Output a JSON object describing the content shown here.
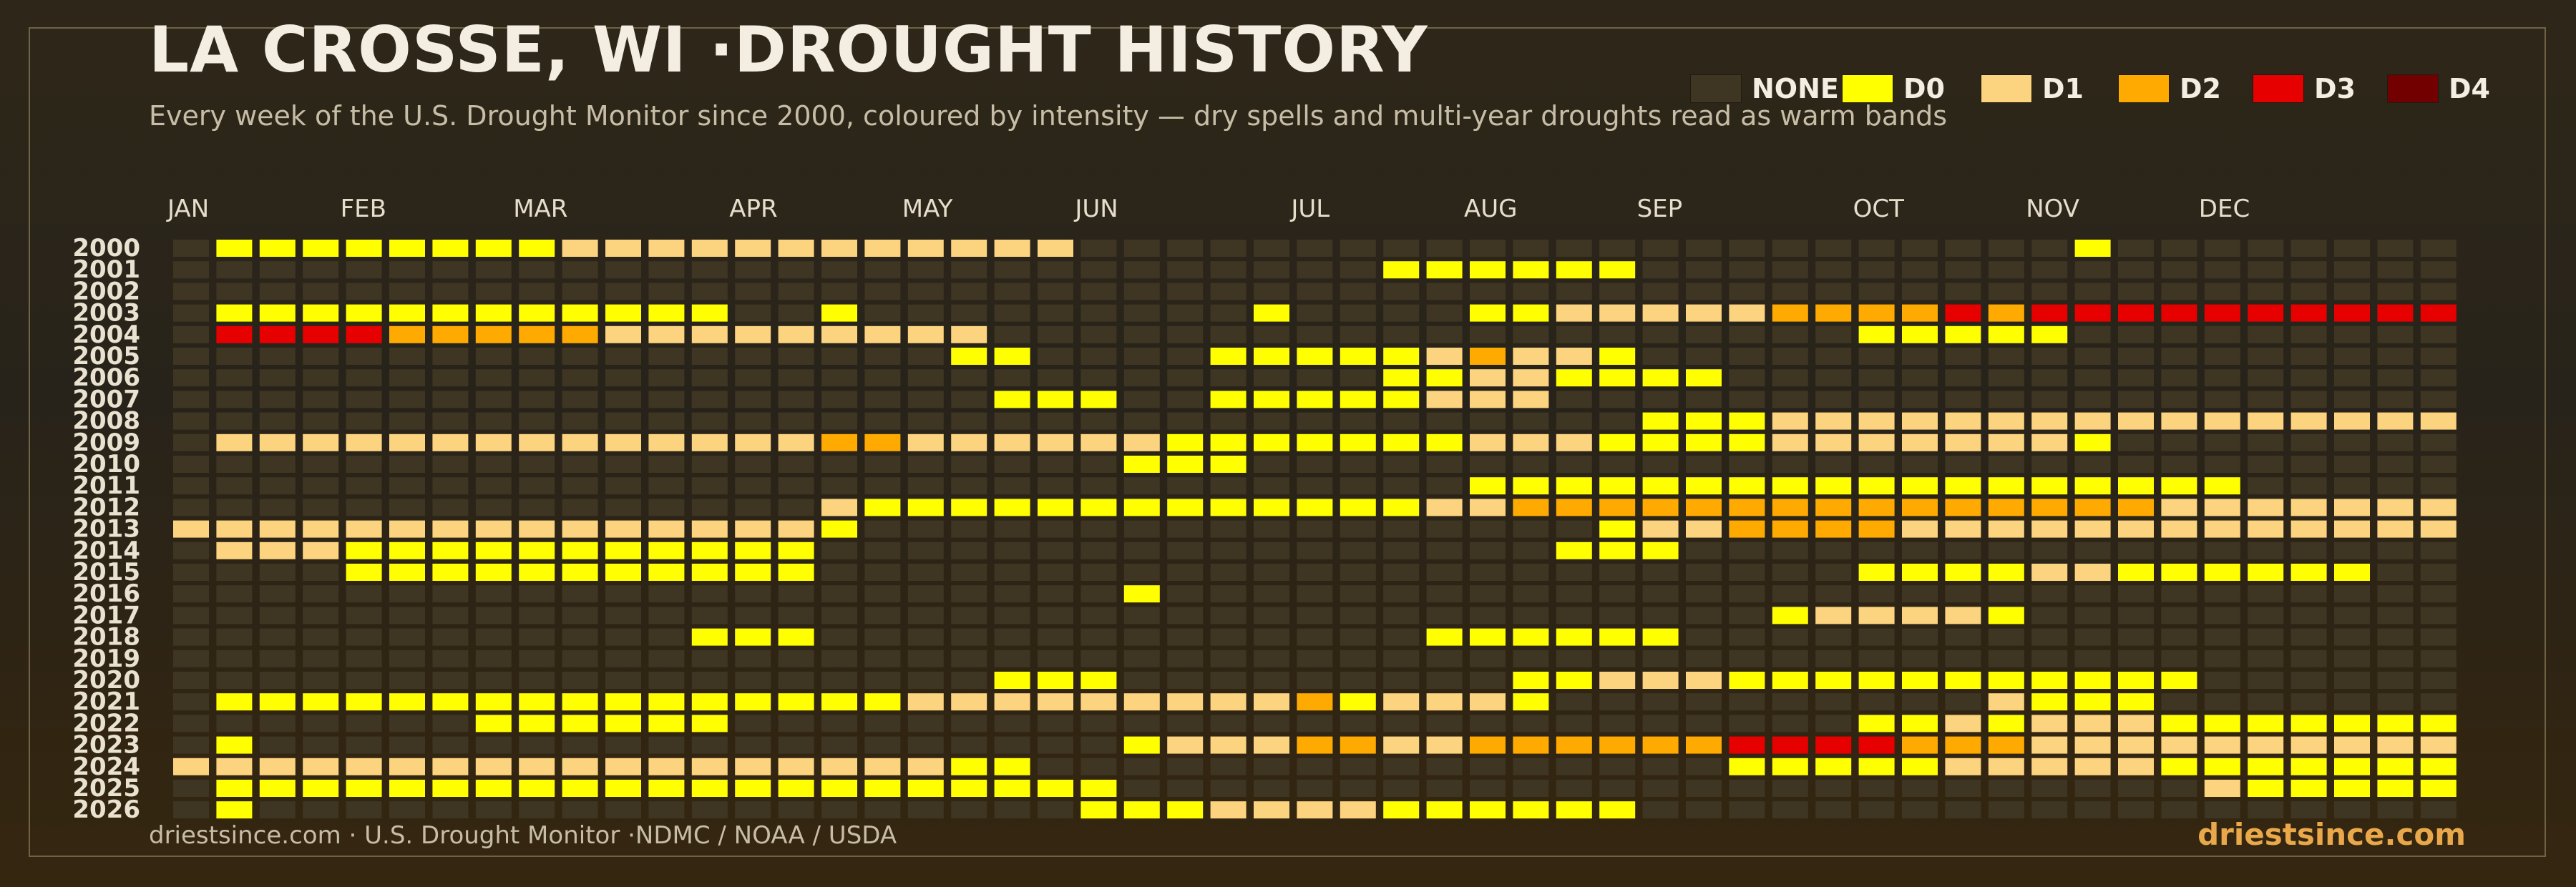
{
  "title": "LA CROSSE, WI ·DROUGHT HISTORY",
  "subtitle": "Every week of the U.S. Drought Monitor since 2000, coloured by intensity — dry spells and multi-year droughts read as warm bands",
  "legend": [
    {
      "key": "none",
      "label": "NONE",
      "color": "#3e3522"
    },
    {
      "key": "d0",
      "label": "D0",
      "color": "#ffff00"
    },
    {
      "key": "d1",
      "label": "D1",
      "color": "#fcd37f"
    },
    {
      "key": "d2",
      "label": "D2",
      "color": "#ffaa00"
    },
    {
      "key": "d3",
      "label": "D3",
      "color": "#e60000"
    },
    {
      "key": "d4",
      "label": "D4",
      "color": "#730000"
    }
  ],
  "footer": {
    "left": "driestsince.com  · U.S. Drought Monitor ·NDMC / NOAA / USDA",
    "right": "driestsince.com"
  },
  "chart_data": {
    "type": "heatmap",
    "title": "LA CROSSE, WI ·DROUGHT HISTORY",
    "subtitle": "Every week of the U.S. Drought Monitor since 2000, coloured by intensity — dry spells and multi-year droughts read as warm bands",
    "x_label": "",
    "y_label": "",
    "columns": 53,
    "month_labels": [
      {
        "label": "JAN",
        "week": 0
      },
      {
        "label": "FEB",
        "week": 4
      },
      {
        "label": "MAR",
        "week": 8
      },
      {
        "label": "APR",
        "week": 13
      },
      {
        "label": "MAY",
        "week": 17
      },
      {
        "label": "JUN",
        "week": 21
      },
      {
        "label": "JUL",
        "week": 26
      },
      {
        "label": "AUG",
        "week": 30
      },
      {
        "label": "SEP",
        "week": 34
      },
      {
        "label": "OCT",
        "week": 39
      },
      {
        "label": "NOV",
        "week": 43
      },
      {
        "label": "DEC",
        "week": 47
      }
    ],
    "levels": [
      "none",
      "D0",
      "D1",
      "D2",
      "D3",
      "D4"
    ],
    "rows": [
      {
        "year": "2000",
        "runs": [
          [
            1,
            8,
            1
          ],
          [
            9,
            20,
            2
          ],
          [
            44,
            44,
            1
          ]
        ]
      },
      {
        "year": "2001",
        "runs": [
          [
            28,
            33,
            1
          ]
        ]
      },
      {
        "year": "2002",
        "runs": []
      },
      {
        "year": "2003",
        "runs": [
          [
            1,
            12,
            1
          ],
          [
            15,
            15,
            1
          ],
          [
            25,
            25,
            1
          ],
          [
            30,
            31,
            1
          ],
          [
            32,
            36,
            2
          ],
          [
            37,
            40,
            3
          ],
          [
            41,
            41,
            4
          ],
          [
            42,
            42,
            3
          ],
          [
            43,
            52,
            4
          ]
        ]
      },
      {
        "year": "2004",
        "runs": [
          [
            1,
            4,
            4
          ],
          [
            5,
            9,
            3
          ],
          [
            10,
            18,
            2
          ],
          [
            39,
            43,
            1
          ]
        ]
      },
      {
        "year": "2005",
        "runs": [
          [
            18,
            19,
            1
          ],
          [
            24,
            28,
            1
          ],
          [
            29,
            29,
            2
          ],
          [
            30,
            30,
            3
          ],
          [
            31,
            32,
            2
          ],
          [
            33,
            33,
            1
          ]
        ]
      },
      {
        "year": "2006",
        "runs": [
          [
            28,
            29,
            1
          ],
          [
            30,
            31,
            2
          ],
          [
            32,
            35,
            1
          ]
        ]
      },
      {
        "year": "2007",
        "runs": [
          [
            19,
            21,
            1
          ],
          [
            24,
            28,
            1
          ],
          [
            29,
            31,
            2
          ]
        ]
      },
      {
        "year": "2008",
        "runs": [
          [
            34,
            36,
            1
          ],
          [
            37,
            52,
            2
          ]
        ]
      },
      {
        "year": "2009",
        "runs": [
          [
            1,
            14,
            2
          ],
          [
            15,
            16,
            3
          ],
          [
            17,
            22,
            2
          ],
          [
            23,
            29,
            1
          ],
          [
            30,
            32,
            2
          ],
          [
            33,
            36,
            1
          ],
          [
            37,
            43,
            2
          ],
          [
            44,
            44,
            1
          ]
        ]
      },
      {
        "year": "2010",
        "runs": [
          [
            22,
            24,
            1
          ]
        ]
      },
      {
        "year": "2011",
        "runs": [
          [
            30,
            47,
            1
          ]
        ]
      },
      {
        "year": "2012",
        "runs": [
          [
            15,
            15,
            2
          ],
          [
            16,
            28,
            1
          ],
          [
            29,
            30,
            2
          ],
          [
            31,
            45,
            3
          ],
          [
            46,
            52,
            2
          ]
        ]
      },
      {
        "year": "2013",
        "runs": [
          [
            0,
            14,
            2
          ],
          [
            15,
            15,
            1
          ],
          [
            33,
            33,
            1
          ],
          [
            34,
            35,
            2
          ],
          [
            36,
            39,
            3
          ],
          [
            40,
            52,
            2
          ]
        ]
      },
      {
        "year": "2014",
        "runs": [
          [
            1,
            3,
            2
          ],
          [
            4,
            14,
            1
          ],
          [
            32,
            34,
            1
          ]
        ]
      },
      {
        "year": "2015",
        "runs": [
          [
            4,
            14,
            1
          ],
          [
            39,
            42,
            1
          ],
          [
            43,
            44,
            2
          ],
          [
            45,
            50,
            1
          ]
        ]
      },
      {
        "year": "2016",
        "runs": [
          [
            22,
            22,
            1
          ]
        ]
      },
      {
        "year": "2017",
        "runs": [
          [
            37,
            37,
            1
          ],
          [
            38,
            41,
            2
          ],
          [
            42,
            42,
            1
          ]
        ]
      },
      {
        "year": "2018",
        "runs": [
          [
            12,
            14,
            1
          ],
          [
            29,
            34,
            1
          ]
        ]
      },
      {
        "year": "2019",
        "runs": []
      },
      {
        "year": "2020",
        "runs": [
          [
            19,
            21,
            1
          ],
          [
            31,
            32,
            1
          ],
          [
            33,
            35,
            2
          ],
          [
            36,
            46,
            1
          ]
        ]
      },
      {
        "year": "2021",
        "runs": [
          [
            1,
            16,
            1
          ],
          [
            17,
            25,
            2
          ],
          [
            26,
            26,
            3
          ],
          [
            27,
            27,
            1
          ],
          [
            28,
            30,
            2
          ],
          [
            31,
            31,
            1
          ],
          [
            42,
            42,
            2
          ],
          [
            43,
            45,
            1
          ]
        ]
      },
      {
        "year": "2022",
        "runs": [
          [
            7,
            12,
            1
          ],
          [
            39,
            40,
            1
          ],
          [
            41,
            41,
            2
          ],
          [
            42,
            42,
            1
          ],
          [
            43,
            45,
            2
          ],
          [
            46,
            52,
            1
          ]
        ]
      },
      {
        "year": "2023",
        "runs": [
          [
            1,
            1,
            1
          ],
          [
            22,
            22,
            1
          ],
          [
            23,
            25,
            2
          ],
          [
            26,
            27,
            3
          ],
          [
            28,
            29,
            2
          ],
          [
            30,
            35,
            3
          ],
          [
            36,
            39,
            4
          ],
          [
            40,
            42,
            3
          ],
          [
            43,
            52,
            2
          ]
        ]
      },
      {
        "year": "2024",
        "runs": [
          [
            0,
            17,
            2
          ],
          [
            18,
            19,
            1
          ],
          [
            36,
            40,
            1
          ],
          [
            41,
            45,
            2
          ],
          [
            46,
            52,
            1
          ]
        ]
      },
      {
        "year": "2025",
        "runs": [
          [
            1,
            21,
            1
          ],
          [
            47,
            47,
            2
          ],
          [
            48,
            52,
            1
          ]
        ]
      },
      {
        "year": "2026",
        "runs": [
          [
            1,
            1,
            1
          ],
          [
            21,
            23,
            1
          ],
          [
            24,
            27,
            2
          ],
          [
            28,
            33,
            1
          ]
        ]
      }
    ]
  }
}
